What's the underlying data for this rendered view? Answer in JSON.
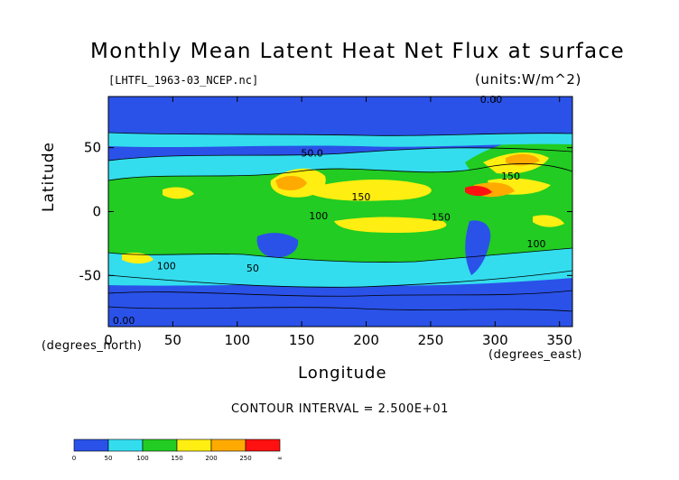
{
  "chart_data": {
    "type": "heatmap",
    "title": "Monthly Mean Latent Heat Net Flux at surface",
    "subtitle": "[LHTFL_1963-03_NCEP.nc]",
    "units": "(units:W/m^2)",
    "xlabel": "Longitude",
    "ylabel": "Latitude",
    "x_unit_label": "(degrees_east)",
    "y_unit_label": "(degrees_north)",
    "xlim": [
      0,
      360
    ],
    "ylim": [
      -90,
      90
    ],
    "x_ticks": [
      0,
      50,
      100,
      150,
      200,
      250,
      300,
      350
    ],
    "y_ticks": [
      -50,
      0,
      50
    ],
    "contour_interval_text": "CONTOUR INTERVAL = 2.500E+01",
    "contour_labels": [
      {
        "text": "0.00",
        "lon": 297,
        "lat": 85
      },
      {
        "text": "50.0",
        "lon": 158,
        "lat": 43
      },
      {
        "text": "150",
        "lon": 196,
        "lat": 9
      },
      {
        "text": "150",
        "lon": 312,
        "lat": 25
      },
      {
        "text": "100",
        "lon": 163,
        "lat": -6
      },
      {
        "text": "150",
        "lon": 258,
        "lat": -7
      },
      {
        "text": "100",
        "lon": 332,
        "lat": -28
      },
      {
        "text": "100",
        "lon": 45,
        "lat": -45
      },
      {
        "text": "50",
        "lon": 112,
        "lat": -47
      },
      {
        "text": "0.00",
        "lon": 12,
        "lat": -88
      }
    ],
    "colorbar": {
      "levels": [
        "0",
        "50",
        "100",
        "150",
        "200",
        "250",
        "∞"
      ],
      "colors": [
        "#2a52e8",
        "#33ddee",
        "#22cc22",
        "#ffee11",
        "#ffaa00",
        "#ff1111"
      ]
    },
    "grid": false,
    "legend": "colorbar bottom-left"
  }
}
